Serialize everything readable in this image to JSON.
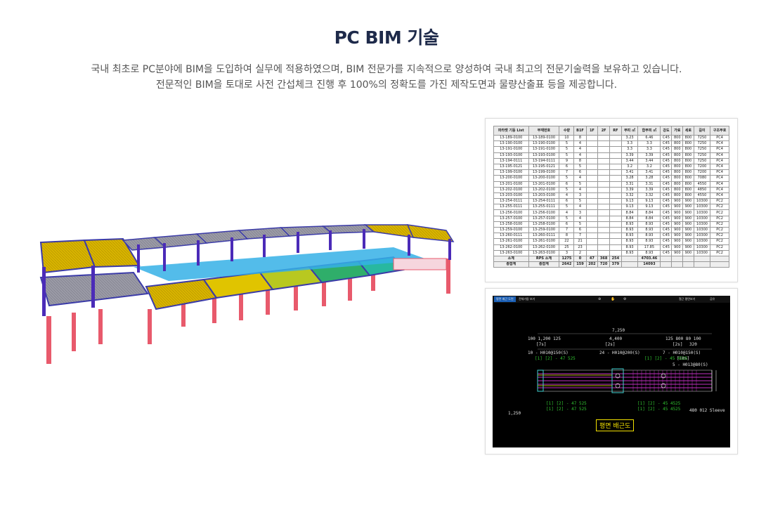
{
  "title": "PC BIM 기술",
  "description": [
    "국내 최초로 PC분야에 BIM을 도입하여 실무에 적용하였으며, BIM 전문가를 지속적으로 양성하여 국내 최고의 전문기술력을 보유하고 있습니다.",
    "전문적인 BIM을 토대로 사전 간섭체크 진행 후 100%의 정확도를 가진 제작도면과 물량산출표 등을 제공합니다."
  ],
  "table": {
    "headers": [
      "파라켓 기둥 List",
      "부재번호",
      "수량",
      "B1F",
      "1F",
      "2F",
      "RF",
      "부피 ㎥",
      "합부피 ㎥",
      "강도",
      "가로",
      "세로",
      "길이",
      "구조부호"
    ],
    "rows": [
      [
        "13-189-0100",
        "13-189-0100",
        "10",
        "8",
        "",
        "",
        "",
        "3.23",
        "6.46",
        "C45",
        "800",
        "800",
        "7250",
        "PC4"
      ],
      [
        "13-190-0100",
        "13-190-0100",
        "5",
        "4",
        "",
        "",
        "",
        "3.3",
        "3.3",
        "C45",
        "800",
        "800",
        "7250",
        "PC4"
      ],
      [
        "13-191-0100",
        "13-191-0100",
        "5",
        "4",
        "",
        "",
        "",
        "3.3",
        "3.3",
        "C45",
        "800",
        "800",
        "7250",
        "PC4"
      ],
      [
        "13-193-0100",
        "13-193-0100",
        "5",
        "4",
        "",
        "",
        "",
        "3.39",
        "3.39",
        "C45",
        "800",
        "800",
        "7250",
        "PC4"
      ],
      [
        "13-194-0111",
        "13-194-0111",
        "9",
        "8",
        "",
        "",
        "",
        "3.44",
        "3.44",
        "C45",
        "800",
        "800",
        "7250",
        "PC4"
      ],
      [
        "13-195-0121",
        "13-195-0121",
        "6",
        "5",
        "",
        "",
        "",
        "3.2",
        "3.2",
        "C45",
        "800",
        "800",
        "7200",
        "PC4"
      ],
      [
        "13-199-0100",
        "13-199-0100",
        "7",
        "6",
        "",
        "",
        "",
        "3.41",
        "3.41",
        "C45",
        "800",
        "800",
        "7200",
        "PC4"
      ],
      [
        "13-200-0100",
        "13-200-0100",
        "5",
        "4",
        "",
        "",
        "",
        "3.28",
        "3.28",
        "C45",
        "800",
        "800",
        "7080",
        "PC4"
      ],
      [
        "13-201-0100",
        "13-201-0100",
        "6",
        "5",
        "",
        "",
        "",
        "3.31",
        "3.31",
        "C45",
        "800",
        "800",
        "4550",
        "PC4"
      ],
      [
        "13-202-0100",
        "13-202-0100",
        "5",
        "4",
        "",
        "",
        "",
        "3.39",
        "3.39",
        "C45",
        "800",
        "800",
        "4850",
        "PC4"
      ],
      [
        "13-203-0100",
        "13-203-0100",
        "4",
        "3",
        "",
        "",
        "",
        "3.32",
        "3.32",
        "C45",
        "800",
        "800",
        "4550",
        "PC4"
      ],
      [
        "13-254-0111",
        "13-254-0111",
        "6",
        "5",
        "",
        "",
        "",
        "9.13",
        "9.13",
        "C45",
        "900",
        "900",
        "10300",
        "PC2"
      ],
      [
        "13-255-0111",
        "13-255-0111",
        "5",
        "4",
        "",
        "",
        "",
        "9.13",
        "9.13",
        "C45",
        "900",
        "900",
        "10300",
        "PC2"
      ],
      [
        "13-256-0100",
        "13-256-0100",
        "4",
        "3",
        "",
        "",
        "",
        "8.84",
        "8.84",
        "C45",
        "900",
        "900",
        "10300",
        "PC2"
      ],
      [
        "13-257-0100",
        "13-257-0100",
        "5",
        "4",
        "",
        "",
        "",
        "8.84",
        "8.84",
        "C45",
        "900",
        "900",
        "10300",
        "PC2"
      ],
      [
        "13-258-0100",
        "13-258-0100",
        "6",
        "5",
        "",
        "",
        "",
        "8.93",
        "8.93",
        "C45",
        "900",
        "900",
        "10300",
        "PC2"
      ],
      [
        "13-259-0100",
        "13-259-0100",
        "7",
        "6",
        "",
        "",
        "",
        "8.93",
        "8.93",
        "C45",
        "900",
        "900",
        "10300",
        "PC2"
      ],
      [
        "13-260-0111",
        "13-260-0111",
        "8",
        "7",
        "",
        "",
        "",
        "8.93",
        "8.93",
        "C45",
        "900",
        "900",
        "10300",
        "PC2"
      ],
      [
        "13-261-0100",
        "13-261-0100",
        "22",
        "21",
        "",
        "",
        "",
        "8.93",
        "8.93",
        "C45",
        "900",
        "900",
        "10300",
        "PC2"
      ],
      [
        "13-262-0100",
        "13-262-0100",
        "25",
        "23",
        "",
        "",
        "",
        "8.93",
        "17.85",
        "C45",
        "900",
        "900",
        "10300",
        "PC2"
      ],
      [
        "13-263-0100",
        "13-263-0100",
        "3",
        "2",
        "",
        "",
        "",
        "8.93",
        "8.93",
        "C45",
        "900",
        "900",
        "10300",
        "PC2"
      ]
    ],
    "subtotal": [
      "소계",
      "RPS 소계",
      "1275",
      "0",
      "47",
      "368",
      "254",
      "",
      "4703.46",
      "",
      "",
      "",
      "",
      ""
    ],
    "total": [
      "총합계",
      "총합계",
      "2642",
      "159",
      "202",
      "720",
      "379",
      "",
      "14093",
      "",
      "",
      "",
      "",
      ""
    ]
  },
  "cad": {
    "tabs": [
      "평면 배근 도면",
      "전체기둥 보기"
    ],
    "tool_icons": [
      "zoom-icon",
      "cursor-icon",
      "settings-icon"
    ],
    "right_tools": [
      "철근 평면보기",
      "공유"
    ],
    "plan_label": "평면 배근도",
    "dims": {
      "total": "7,250",
      "left_group": "100  1,200  125",
      "mid": "4,400",
      "right_group": "125 800  80 100",
      "left_bracket": "[7s]",
      "mid_bracket": "[2s]",
      "right_bracket": "[2s]",
      "right_320": "320",
      "rebar_left": "10 - H010@150(S)",
      "rebar_mid": "24 - H010@200(S)",
      "rebar_right": "7 - H010@150(S)",
      "rebar_right2": "5 - H013@80(S)",
      "right_18": "[18s]",
      "bottom_left": "1,250",
      "sleeve": "480  012 Sleeve",
      "tag_left_1": "[1]  [2] -  47 525",
      "tag_mid_1": "[1]  [2] -  45 4525",
      "tag_left_2": "[1]  [2] -  47 525",
      "tag_left_3": "[1]  [2] -  47 525",
      "tag_right_2": "[1]  [2] -  45 4525",
      "tag_right_3": "[1]  [2] -  45 4525"
    }
  },
  "colors": {
    "title": "#1e2a4a",
    "slab_yellow": "#d8b400",
    "slab_gray": "#9a9aa6",
    "column_pink": "#e85a6c",
    "beam_blue": "#3b3ba8",
    "slab_green": "#2fae6a",
    "cad_bg": "#000000",
    "cad_label": "#f2e000"
  }
}
